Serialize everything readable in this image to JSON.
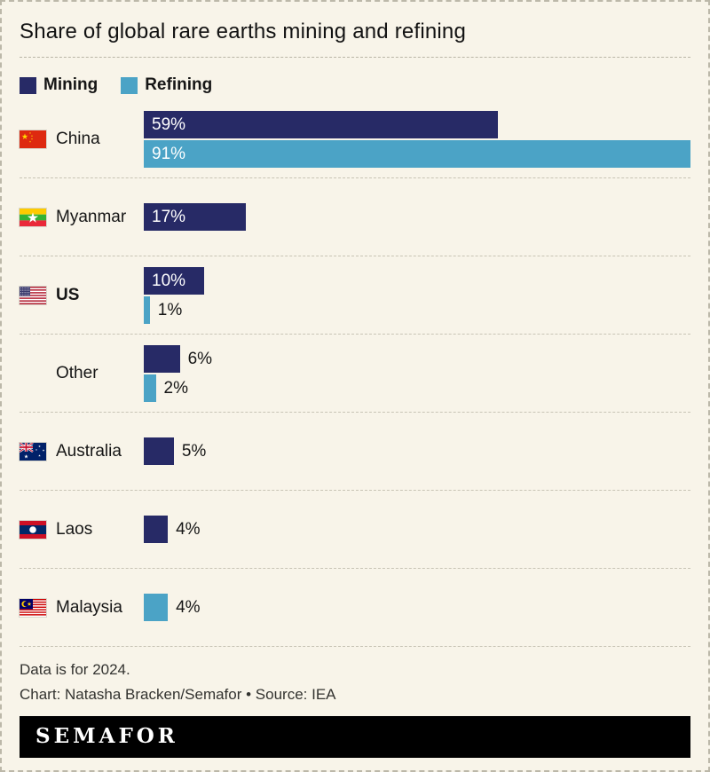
{
  "title": "Share of global rare earths mining and refining",
  "legend": [
    {
      "label": "Mining",
      "color": "#272a66"
    },
    {
      "label": "Refining",
      "color": "#4ba3c6"
    }
  ],
  "chart_data": {
    "type": "bar",
    "orientation": "horizontal",
    "unit": "%",
    "xmax": 91,
    "series_names": [
      "Mining",
      "Refining"
    ],
    "rows": [
      {
        "label": "China",
        "flag": "china",
        "bold": false,
        "bars": [
          {
            "series": "mining",
            "value": 59
          },
          {
            "series": "refining",
            "value": 91
          }
        ]
      },
      {
        "label": "Myanmar",
        "flag": "myanmar",
        "bold": false,
        "bars": [
          {
            "series": "mining",
            "value": 17
          }
        ]
      },
      {
        "label": "US",
        "flag": "us",
        "bold": true,
        "bars": [
          {
            "series": "mining",
            "value": 10
          },
          {
            "series": "refining",
            "value": 1
          }
        ]
      },
      {
        "label": "Other",
        "flag": null,
        "bold": false,
        "bars": [
          {
            "series": "mining",
            "value": 6
          },
          {
            "series": "refining",
            "value": 2
          }
        ]
      },
      {
        "label": "Australia",
        "flag": "australia",
        "bold": false,
        "bars": [
          {
            "series": "mining",
            "value": 5
          }
        ]
      },
      {
        "label": "Laos",
        "flag": "laos",
        "bold": false,
        "bars": [
          {
            "series": "mining",
            "value": 4
          }
        ]
      },
      {
        "label": "Malaysia",
        "flag": "malaysia",
        "bold": false,
        "bars": [
          {
            "series": "refining",
            "value": 4
          }
        ]
      }
    ]
  },
  "footer": {
    "note": "Data is for 2024.",
    "credit": "Chart: Natasha Bracken/Semafor • Source: IEA",
    "logo": "SEMAFOR"
  },
  "colors": {
    "mining": "#272a66",
    "refining": "#4ba3c6",
    "background": "#f8f4e9",
    "separator": "#c8c4b5"
  }
}
